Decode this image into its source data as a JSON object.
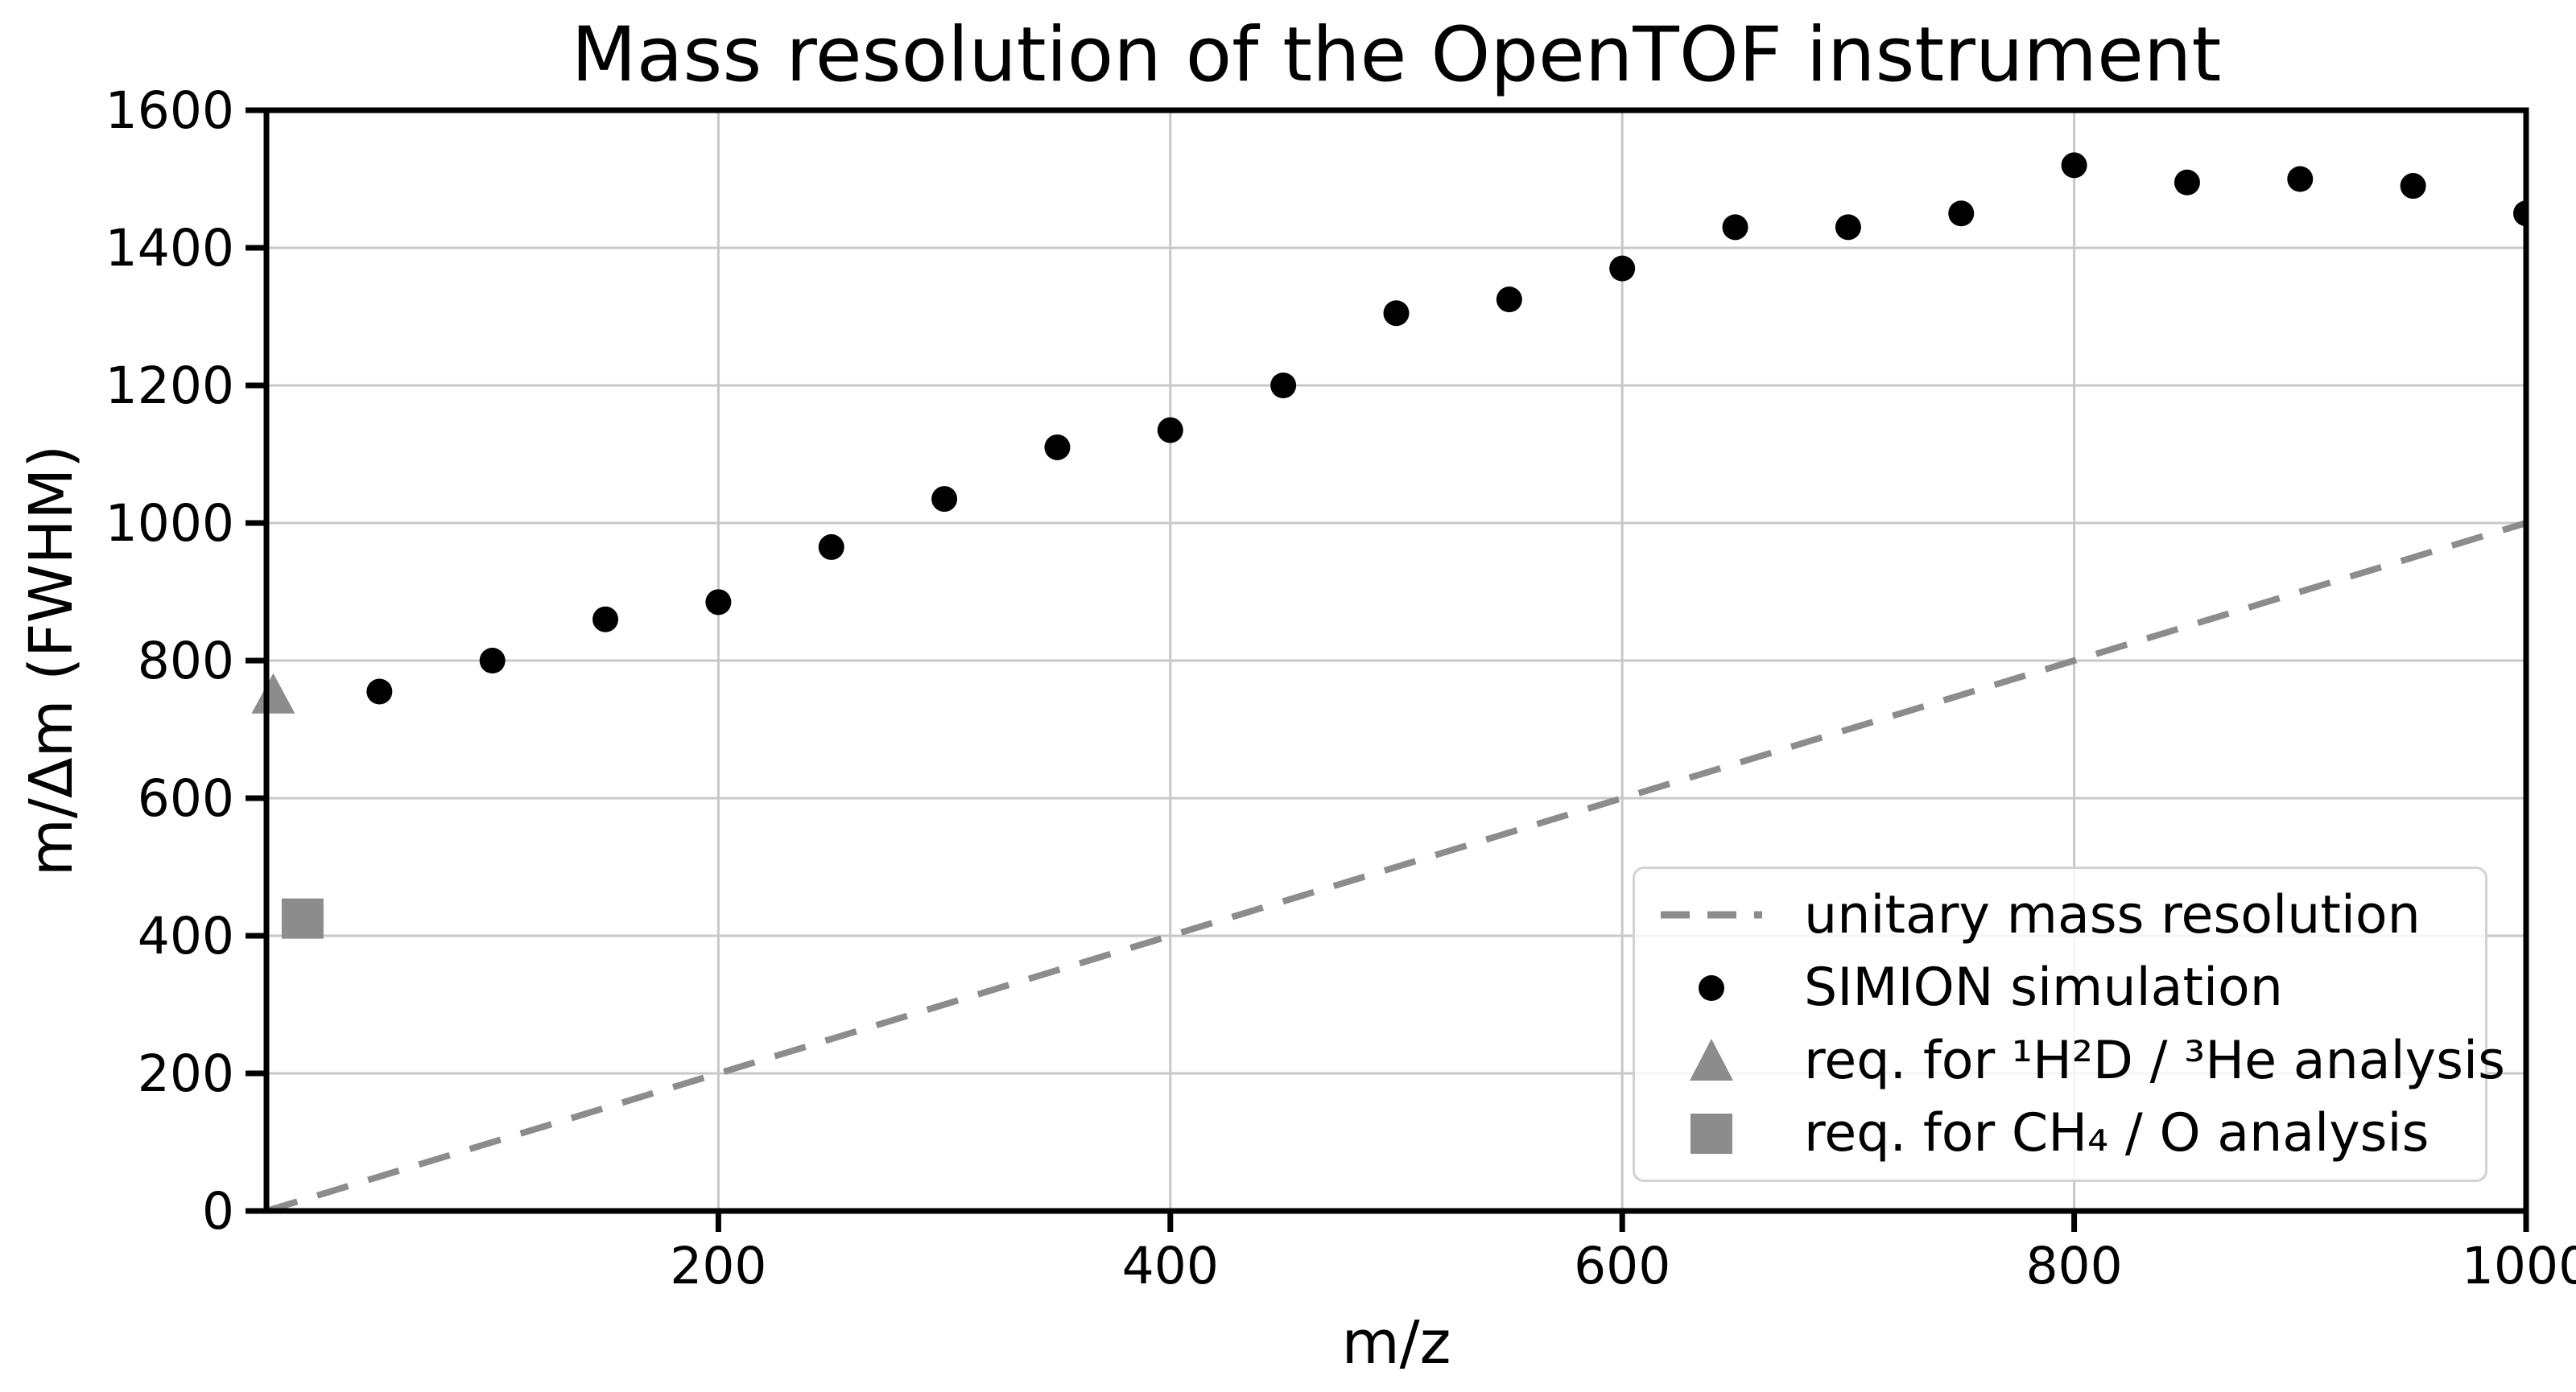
{
  "figure": {
    "background": "#ffffff"
  },
  "chart_data": {
    "type": "scatter",
    "title": "Mass resolution of the OpenTOF instrument",
    "xlabel": "m/z",
    "ylabel": "m/Δm (FWHM)",
    "xlim": [
      0,
      1000
    ],
    "ylim": [
      0,
      1600
    ],
    "x_ticks": [
      200,
      400,
      600,
      800,
      1000
    ],
    "y_ticks": [
      0,
      200,
      400,
      600,
      800,
      1000,
      1200,
      1400,
      1600
    ],
    "grid": true,
    "grid_color": "#c8c8c8",
    "axis_color": "#000000",
    "legend_position": "lower right",
    "series": [
      {
        "name": "unitary mass resolution",
        "type": "line",
        "style": "dashed",
        "color": "#8c8c8c",
        "x": [
          0,
          1000
        ],
        "y": [
          0,
          1000
        ]
      },
      {
        "name": "SIMION simulation",
        "type": "scatter",
        "marker": "circle",
        "color": "#000000",
        "points": [
          [
            50,
            755
          ],
          [
            100,
            800
          ],
          [
            150,
            860
          ],
          [
            200,
            885
          ],
          [
            250,
            965
          ],
          [
            300,
            1035
          ],
          [
            350,
            1110
          ],
          [
            400,
            1135
          ],
          [
            450,
            1200
          ],
          [
            500,
            1305
          ],
          [
            550,
            1325
          ],
          [
            600,
            1370
          ],
          [
            650,
            1430
          ],
          [
            700,
            1430
          ],
          [
            750,
            1450
          ],
          [
            800,
            1520
          ],
          [
            850,
            1495
          ],
          [
            900,
            1500
          ],
          [
            950,
            1490
          ],
          [
            1000,
            1450
          ]
        ]
      },
      {
        "name": "req. for ¹H²D / ³He analysis",
        "type": "scatter",
        "marker": "triangle",
        "color": "#8c8c8c",
        "points": [
          [
            3,
            750
          ]
        ]
      },
      {
        "name": "req. for CH₄ / O analysis",
        "type": "scatter",
        "marker": "square",
        "color": "#8c8c8c",
        "points": [
          [
            16,
            425
          ]
        ]
      }
    ]
  }
}
